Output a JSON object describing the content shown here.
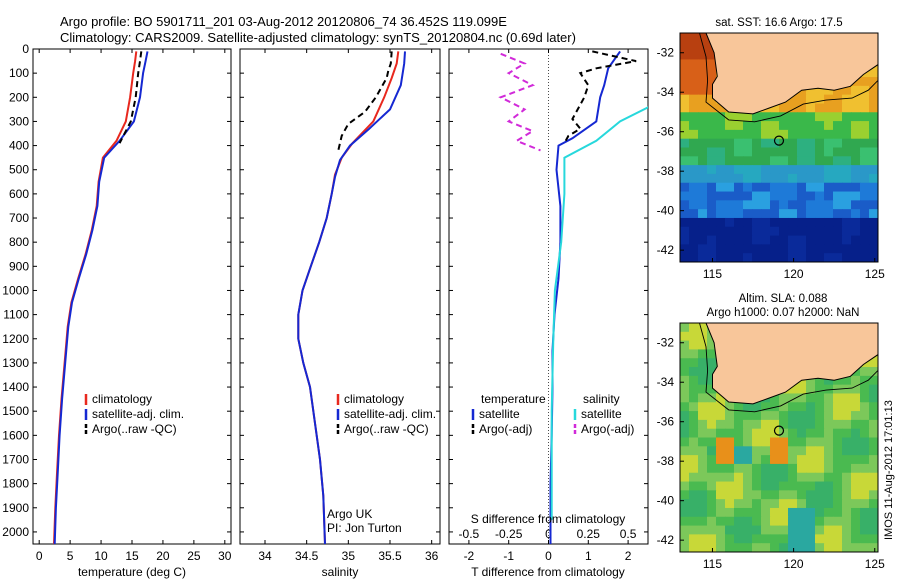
{
  "header": {
    "line1": "Argo profile: BO 5901711_201 03-Aug-2012 20120806_74 36.452S 119.099E",
    "line2": "Climatology: CARS2009. Satellite-adjusted climatology: synTS_20120804.nc (0.69d later)"
  },
  "side_label": "IMOS 11-Aug-2012 17:01:13",
  "colors": {
    "climatology": "#e8281e",
    "satellite": "#1528d2",
    "argo": "#000000",
    "temp_diff": "#1528d2",
    "sal_sat": "#27d8dc",
    "sal_argo": "#d12ad9",
    "land": "#f8c69a"
  },
  "chart_data": [
    {
      "type": "line",
      "panel": "temperature",
      "xlabel": "temperature (deg C)",
      "ylabel": "",
      "xlim": [
        -1,
        31
      ],
      "ylim": [
        0,
        2050
      ],
      "xticks": [
        0,
        5,
        10,
        15,
        20,
        25,
        30
      ],
      "yticks": [
        0,
        100,
        200,
        300,
        400,
        500,
        600,
        700,
        800,
        900,
        1000,
        1100,
        1200,
        1300,
        1400,
        1500,
        1600,
        1700,
        1800,
        1900,
        2000
      ],
      "legend": [
        "climatology",
        "satellite-adj. clim.",
        "Argo(..raw -QC)"
      ],
      "series": [
        {
          "name": "climatology",
          "color": "#e8281e",
          "dash": "none",
          "points": [
            [
              15.7,
              10
            ],
            [
              15.5,
              50
            ],
            [
              15.2,
              100
            ],
            [
              14.7,
              200
            ],
            [
              14,
              300
            ],
            [
              12.5,
              380
            ],
            [
              10.3,
              450
            ],
            [
              9.6,
              550
            ],
            [
              9.3,
              650
            ],
            [
              8.5,
              750
            ],
            [
              7.5,
              850
            ],
            [
              6.3,
              950
            ],
            [
              5.2,
              1050
            ],
            [
              4.6,
              1150
            ],
            [
              4.1,
              1300
            ],
            [
              3.6,
              1450
            ],
            [
              3.2,
              1600
            ],
            [
              2.9,
              1750
            ],
            [
              2.6,
              1900
            ],
            [
              2.4,
              2050
            ]
          ]
        },
        {
          "name": "satellite-adj. clim.",
          "color": "#1528d2",
          "dash": "none",
          "points": [
            [
              17.5,
              10
            ],
            [
              17.2,
              50
            ],
            [
              16.8,
              100
            ],
            [
              16.3,
              200
            ],
            [
              15.3,
              300
            ],
            [
              13,
              380
            ],
            [
              10.5,
              450
            ],
            [
              9.7,
              550
            ],
            [
              9.4,
              650
            ],
            [
              8.6,
              750
            ],
            [
              7.6,
              850
            ],
            [
              6.4,
              950
            ],
            [
              5.3,
              1050
            ],
            [
              4.7,
              1150
            ],
            [
              4.2,
              1300
            ],
            [
              3.7,
              1450
            ],
            [
              3.3,
              1600
            ],
            [
              3,
              1750
            ],
            [
              2.7,
              1900
            ],
            [
              2.5,
              2050
            ]
          ]
        },
        {
          "name": "Argo(..raw -QC)",
          "color": "#000000",
          "dash": "6,4",
          "points": [
            [
              16.5,
              10
            ],
            [
              16.3,
              50
            ],
            [
              16,
              100
            ],
            [
              15.6,
              200
            ],
            [
              14.8,
              300
            ],
            [
              13,
              390
            ]
          ]
        }
      ]
    },
    {
      "type": "line",
      "panel": "salinity",
      "xlabel": "salinity",
      "ylabel": "",
      "xlim": [
        33.7,
        36.1
      ],
      "ylim": [
        0,
        2050
      ],
      "xticks": [
        34,
        34.5,
        35,
        35.5,
        36
      ],
      "legend": [
        "climatology",
        "satellite-adj. clim.",
        "Argo(..raw -QC)"
      ],
      "annotation": [
        "Argo UK",
        "PI: Jon Turton"
      ],
      "series": [
        {
          "name": "climatology",
          "color": "#e8281e",
          "dash": "none",
          "points": [
            [
              35.6,
              10
            ],
            [
              35.58,
              60
            ],
            [
              35.52,
              120
            ],
            [
              35.43,
              200
            ],
            [
              35.3,
              300
            ],
            [
              35.05,
              390
            ],
            [
              34.92,
              450
            ],
            [
              34.84,
              520
            ],
            [
              34.8,
              600
            ],
            [
              34.74,
              700
            ],
            [
              34.65,
              800
            ],
            [
              34.55,
              900
            ],
            [
              34.45,
              1000
            ],
            [
              34.4,
              1100
            ],
            [
              34.4,
              1200
            ],
            [
              34.46,
              1300
            ],
            [
              34.54,
              1400
            ],
            [
              34.6,
              1550
            ],
            [
              34.66,
              1700
            ],
            [
              34.7,
              1850
            ],
            [
              34.72,
              2050
            ]
          ]
        },
        {
          "name": "satellite-adj. clim.",
          "color": "#1528d2",
          "dash": "none",
          "points": [
            [
              35.68,
              10
            ],
            [
              35.67,
              60
            ],
            [
              35.63,
              150
            ],
            [
              35.5,
              250
            ],
            [
              35.25,
              330
            ],
            [
              35.02,
              400
            ],
            [
              34.9,
              460
            ],
            [
              34.84,
              530
            ],
            [
              34.8,
              600
            ],
            [
              34.74,
              700
            ],
            [
              34.65,
              800
            ],
            [
              34.55,
              900
            ],
            [
              34.45,
              1000
            ],
            [
              34.4,
              1100
            ],
            [
              34.4,
              1200
            ],
            [
              34.46,
              1300
            ],
            [
              34.54,
              1400
            ],
            [
              34.6,
              1550
            ],
            [
              34.66,
              1700
            ],
            [
              34.7,
              1850
            ],
            [
              34.72,
              2050
            ]
          ]
        },
        {
          "name": "Argo(..raw -QC)",
          "color": "#000000",
          "dash": "6,4",
          "points": [
            [
              35.52,
              10
            ],
            [
              35.51,
              60
            ],
            [
              35.48,
              90
            ],
            [
              35.46,
              120
            ],
            [
              35.33,
              200
            ],
            [
              35.2,
              260
            ],
            [
              35,
              310
            ],
            [
              34.92,
              360
            ],
            [
              34.88,
              420
            ]
          ]
        }
      ]
    },
    {
      "type": "line",
      "panel": "difference",
      "xlabel": "T difference from climatology",
      "x2label": "S difference from climatology",
      "xlim": [
        -2.5,
        2.5
      ],
      "x2lim": [
        -0.625,
        0.625
      ],
      "ylim": [
        0,
        2050
      ],
      "xticks": [
        -2,
        -1,
        0,
        1,
        2
      ],
      "x2ticks": [
        "-0.5",
        "-0.25",
        "0",
        "0.25",
        "0.5"
      ],
      "legend_left_title": "temperature",
      "legend_right_title": "salinity",
      "legend": [
        "satellite",
        "Argo(-adj)",
        "satellite",
        "Argo(-adj)"
      ],
      "series": [
        {
          "name": "satellite",
          "group": "temperature",
          "color": "#1528d2",
          "dash": "none",
          "points": [
            [
              1.8,
              10
            ],
            [
              1.5,
              80
            ],
            [
              1.4,
              150
            ],
            [
              1.3,
              200
            ],
            [
              1.2,
              300
            ],
            [
              0.6,
              370
            ],
            [
              0.25,
              400
            ],
            [
              0.2,
              500
            ],
            [
              0.3,
              650
            ],
            [
              0.3,
              800
            ],
            [
              0.25,
              950
            ],
            [
              0.15,
              1100
            ],
            [
              0.1,
              1250
            ],
            [
              0.1,
              1400
            ],
            [
              0.08,
              1600
            ],
            [
              0.05,
              1800
            ],
            [
              0.05,
              2050
            ]
          ]
        },
        {
          "name": "Argo(-adj)",
          "group": "temperature",
          "color": "#000000",
          "dash": "6,4",
          "points": [
            [
              1.1,
              10
            ],
            [
              2.2,
              50
            ],
            [
              1.2,
              80
            ],
            [
              0.8,
              100
            ],
            [
              1.0,
              150
            ],
            [
              0.9,
              200
            ],
            [
              0.6,
              290
            ],
            [
              0.8,
              330
            ],
            [
              0.5,
              360
            ],
            [
              0.4,
              390
            ]
          ]
        },
        {
          "name": "satellite",
          "group": "salinity",
          "color": "#27d8dc",
          "dash": "none",
          "points": [
            [
              0.85,
              10
            ],
            [
              0.8,
              80
            ],
            [
              0.75,
              200
            ],
            [
              0.45,
              300
            ],
            [
              0.3,
              380
            ],
            [
              0.1,
              450
            ],
            [
              0.1,
              600
            ],
            [
              0.08,
              800
            ],
            [
              0.04,
              1000
            ],
            [
              0.03,
              1200
            ],
            [
              0.02,
              1500
            ],
            [
              0.02,
              1800
            ],
            [
              0.02,
              1950
            ]
          ]
        },
        {
          "name": "Argo(-adj)",
          "group": "salinity",
          "color": "#d12ad9",
          "dash": "6,4",
          "points": [
            [
              -0.3,
              20
            ],
            [
              -0.15,
              60
            ],
            [
              -0.25,
              100
            ],
            [
              -0.1,
              150
            ],
            [
              -0.3,
              200
            ],
            [
              -0.15,
              250
            ],
            [
              -0.25,
              300
            ],
            [
              -0.1,
              340
            ],
            [
              -0.2,
              380
            ],
            [
              -0.05,
              420
            ]
          ]
        }
      ]
    }
  ],
  "maps": [
    {
      "title": "sat. SST: 16.6 Argo: 17.5",
      "xlim": [
        113,
        125.2
      ],
      "ylim": [
        -42.6,
        -31
      ],
      "xticks": [
        115,
        120,
        125
      ],
      "yticks": [
        -32,
        -34,
        -36,
        -38,
        -40,
        -42
      ],
      "argo_position": [
        119.099,
        -36.452
      ]
    },
    {
      "title_line1": "Altim. SLA: 0.088",
      "title_line2": "Argo h1000: 0.07 h2000: NaN",
      "xlim": [
        113,
        125.2
      ],
      "ylim": [
        -42.6,
        -31
      ],
      "xticks": [
        115,
        120,
        125
      ],
      "yticks": [
        -32,
        -34,
        -36,
        -38,
        -40,
        -42
      ],
      "argo_position": [
        119.099,
        -36.452
      ]
    }
  ]
}
